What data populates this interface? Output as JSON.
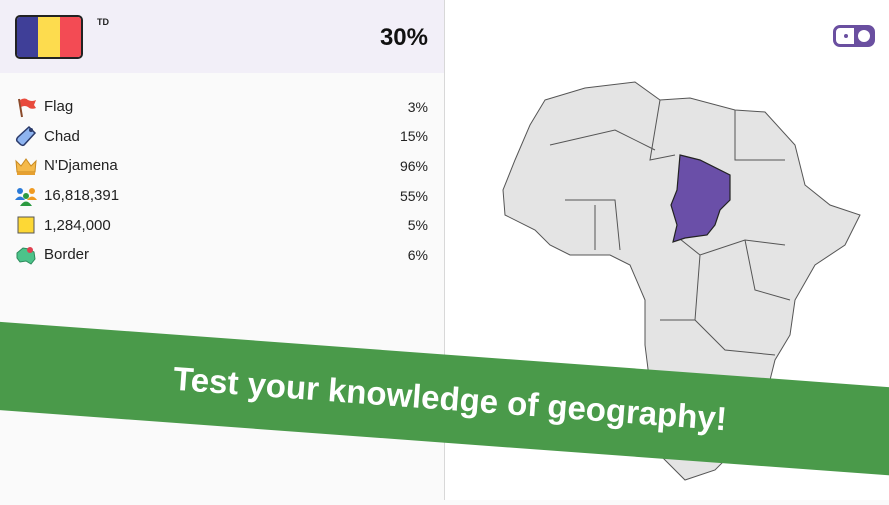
{
  "country": {
    "code": "TD",
    "score": "30%",
    "flag_colors": [
      "#3f3f98",
      "#fddc4e",
      "#f34b54"
    ]
  },
  "stats": [
    {
      "icon": "flag-icon",
      "label": "Flag",
      "pct": "3%"
    },
    {
      "icon": "tag-icon",
      "label": "Chad",
      "pct": "15%"
    },
    {
      "icon": "crown-icon",
      "label": "N'Djamena",
      "pct": "96%"
    },
    {
      "icon": "people-icon",
      "label": "16,818,391",
      "pct": "55%"
    },
    {
      "icon": "area-icon",
      "label": "1,284,000",
      "pct": "5%"
    },
    {
      "icon": "border-map-icon",
      "label": "Border",
      "pct": "6%"
    }
  ],
  "map": {
    "highlight_color": "#6a4fa8",
    "land_color": "#e4e4e4"
  },
  "banner": {
    "text": "Test your knowledge of geography!",
    "color": "#4a9a4a"
  }
}
